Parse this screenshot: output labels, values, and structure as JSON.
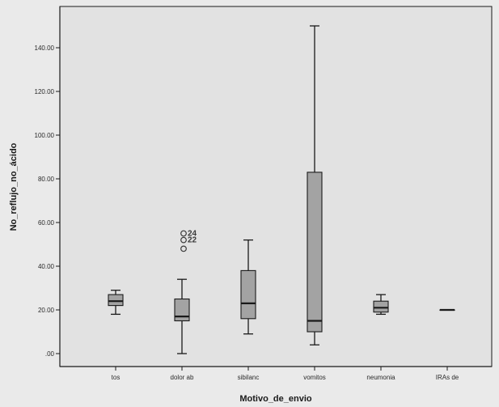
{
  "chart_data": {
    "type": "boxplot",
    "xlabel": "Motivo_de_envio",
    "ylabel": "No_reflujo_no_ácido",
    "ylim": [
      -6,
      162
    ],
    "yticks": [
      {
        "value": 0,
        "label": ".00"
      },
      {
        "value": 20,
        "label": "20.00"
      },
      {
        "value": 40,
        "label": "40.00"
      },
      {
        "value": 60,
        "label": "60.00"
      },
      {
        "value": 80,
        "label": "80.00"
      },
      {
        "value": 100,
        "label": "100.00"
      },
      {
        "value": 120,
        "label": "120.00"
      },
      {
        "value": 140,
        "label": "140.00"
      }
    ],
    "grid": false,
    "categories": [
      "tos",
      "dolor ab",
      "sibilanc",
      "vomitos",
      "neumonia",
      "IRAs de"
    ],
    "boxes": [
      {
        "category": "tos",
        "min": 18,
        "q1": 22,
        "median": 24,
        "q3": 27,
        "max": 29
      },
      {
        "category": "dolor ab",
        "min": 0,
        "q1": 15,
        "median": 17,
        "q3": 25,
        "max": 34
      },
      {
        "category": "sibilanc",
        "min": 9,
        "q1": 16,
        "median": 23,
        "q3": 38,
        "max": 52
      },
      {
        "category": "vomitos",
        "min": 4,
        "q1": 10,
        "median": 15,
        "q3": 83,
        "max": 150
      },
      {
        "category": "neumonia",
        "min": 18,
        "q1": 19,
        "median": 21,
        "q3": 24,
        "max": 27
      },
      {
        "category": "IRAs de",
        "min": 20,
        "q1": 20,
        "median": 20,
        "q3": 20,
        "max": 20
      }
    ],
    "outliers": [
      {
        "category": "dolor ab",
        "value": 55,
        "label": "24"
      },
      {
        "category": "dolor ab",
        "value": 52,
        "label": "22"
      },
      {
        "category": "dolor ab",
        "value": 48,
        "label": ""
      }
    ],
    "colors": {
      "background": "#eaeaea",
      "plot_background": "#e2e2e2",
      "box_fill": "#a3a3a3",
      "line": "#1a1a1a"
    }
  }
}
